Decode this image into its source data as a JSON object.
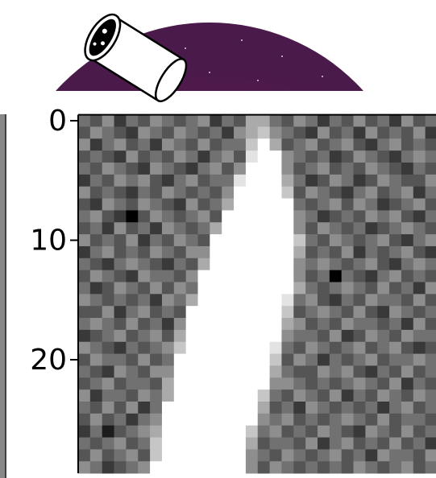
{
  "chart_data": {
    "type": "heatmap",
    "colormap": "gray",
    "ylim": [
      -0.5,
      29.5
    ],
    "yticks": [
      0,
      10,
      20
    ],
    "values": [
      [
        4,
        3,
        5,
        2,
        4,
        3,
        5,
        4,
        3,
        4,
        5,
        2,
        4,
        3,
        6,
        6,
        4,
        3,
        5,
        4,
        2,
        4,
        3,
        5,
        3,
        4,
        2,
        5,
        3,
        4
      ],
      [
        3,
        5,
        4,
        3,
        2,
        5,
        4,
        3,
        5,
        4,
        3,
        4,
        2,
        5,
        6,
        7,
        5,
        4,
        3,
        2,
        5,
        3,
        4,
        2,
        5,
        3,
        4,
        3,
        5,
        2
      ],
      [
        5,
        2,
        4,
        5,
        3,
        4,
        2,
        5,
        4,
        3,
        5,
        3,
        4,
        4,
        7,
        9,
        6,
        3,
        4,
        5,
        3,
        4,
        5,
        3,
        2,
        4,
        5,
        3,
        4,
        3
      ],
      [
        3,
        4,
        3,
        2,
        5,
        3,
        4,
        3,
        5,
        4,
        2,
        4,
        5,
        3,
        8,
        9,
        9,
        5,
        4,
        3,
        4,
        2,
        3,
        5,
        4,
        3,
        2,
        4,
        5,
        4
      ],
      [
        4,
        3,
        5,
        4,
        3,
        2,
        5,
        4,
        3,
        2,
        4,
        5,
        3,
        5,
        9,
        9,
        9,
        5,
        3,
        4,
        5,
        3,
        4,
        3,
        5,
        4,
        3,
        2,
        4,
        3
      ],
      [
        2,
        4,
        3,
        5,
        4,
        5,
        3,
        2,
        4,
        5,
        3,
        4,
        4,
        8,
        9,
        9,
        9,
        6,
        4,
        2,
        3,
        5,
        4,
        2,
        3,
        5,
        4,
        3,
        3,
        5
      ],
      [
        5,
        3,
        4,
        3,
        2,
        4,
        3,
        5,
        4,
        3,
        4,
        3,
        5,
        9,
        9,
        9,
        9,
        7,
        3,
        5,
        4,
        3,
        2,
        4,
        5,
        3,
        4,
        5,
        2,
        4
      ],
      [
        3,
        2,
        5,
        4,
        3,
        5,
        4,
        3,
        2,
        5,
        3,
        4,
        6,
        9,
        9,
        9,
        9,
        9,
        4,
        3,
        4,
        5,
        3,
        5,
        4,
        2,
        3,
        4,
        5,
        3
      ],
      [
        4,
        5,
        3,
        2,
        0,
        3,
        5,
        4,
        3,
        4,
        5,
        3,
        9,
        9,
        9,
        9,
        9,
        9,
        5,
        4,
        2,
        3,
        4,
        3,
        5,
        4,
        5,
        3,
        2,
        4
      ],
      [
        3,
        4,
        2,
        5,
        3,
        4,
        2,
        5,
        4,
        3,
        4,
        6,
        9,
        9,
        9,
        9,
        9,
        9,
        5,
        3,
        5,
        4,
        3,
        4,
        2,
        3,
        4,
        5,
        4,
        3
      ],
      [
        5,
        3,
        4,
        3,
        5,
        2,
        4,
        3,
        5,
        4,
        3,
        9,
        9,
        9,
        9,
        9,
        9,
        9,
        7,
        4,
        3,
        5,
        4,
        3,
        4,
        5,
        3,
        2,
        4,
        5
      ],
      [
        2,
        4,
        5,
        3,
        4,
        3,
        5,
        4,
        3,
        5,
        5,
        9,
        9,
        9,
        9,
        9,
        9,
        9,
        6,
        3,
        4,
        3,
        5,
        2,
        4,
        3,
        4,
        5,
        3,
        2
      ],
      [
        4,
        3,
        2,
        4,
        5,
        4,
        3,
        2,
        4,
        3,
        6,
        9,
        9,
        9,
        9,
        9,
        9,
        9,
        5,
        4,
        5,
        4,
        3,
        4,
        5,
        3,
        2,
        4,
        5,
        4
      ],
      [
        3,
        5,
        4,
        3,
        2,
        5,
        4,
        4,
        3,
        5,
        9,
        9,
        9,
        9,
        9,
        9,
        9,
        9,
        5,
        3,
        4,
        0,
        4,
        3,
        2,
        4,
        5,
        3,
        4,
        3
      ],
      [
        4,
        2,
        3,
        5,
        4,
        3,
        5,
        3,
        5,
        4,
        9,
        9,
        9,
        9,
        9,
        9,
        9,
        9,
        6,
        4,
        3,
        4,
        5,
        4,
        3,
        5,
        3,
        4,
        2,
        5
      ],
      [
        5,
        4,
        3,
        4,
        3,
        4,
        2,
        5,
        4,
        6,
        9,
        9,
        9,
        9,
        9,
        9,
        9,
        8,
        4,
        5,
        3,
        2,
        4,
        3,
        5,
        4,
        4,
        3,
        5,
        3
      ],
      [
        3,
        3,
        5,
        2,
        4,
        5,
        3,
        4,
        3,
        9,
        9,
        9,
        9,
        9,
        9,
        9,
        9,
        7,
        3,
        4,
        5,
        4,
        3,
        5,
        3,
        2,
        5,
        4,
        3,
        4
      ],
      [
        4,
        5,
        4,
        3,
        5,
        3,
        4,
        2,
        5,
        9,
        9,
        9,
        9,
        9,
        9,
        9,
        9,
        6,
        5,
        3,
        4,
        3,
        5,
        4,
        4,
        3,
        4,
        2,
        5,
        3
      ],
      [
        2,
        3,
        4,
        5,
        3,
        4,
        5,
        3,
        6,
        9,
        9,
        9,
        9,
        9,
        9,
        9,
        9,
        5,
        4,
        4,
        3,
        5,
        2,
        3,
        5,
        4,
        3,
        5,
        4,
        4
      ],
      [
        5,
        4,
        3,
        2,
        4,
        3,
        4,
        5,
        7,
        9,
        9,
        9,
        9,
        9,
        9,
        9,
        8,
        4,
        3,
        5,
        4,
        3,
        4,
        5,
        3,
        4,
        5,
        3,
        2,
        3
      ],
      [
        3,
        5,
        4,
        4,
        3,
        5,
        3,
        4,
        9,
        9,
        9,
        9,
        9,
        9,
        9,
        9,
        7,
        3,
        5,
        4,
        2,
        4,
        3,
        4,
        5,
        3,
        4,
        4,
        5,
        4
      ],
      [
        4,
        3,
        2,
        5,
        4,
        3,
        5,
        5,
        9,
        9,
        9,
        9,
        9,
        9,
        9,
        9,
        6,
        4,
        3,
        3,
        5,
        4,
        5,
        3,
        2,
        4,
        3,
        5,
        3,
        4
      ],
      [
        3,
        4,
        5,
        3,
        4,
        4,
        3,
        6,
        9,
        9,
        9,
        9,
        9,
        9,
        9,
        9,
        5,
        5,
        4,
        3,
        4,
        3,
        4,
        5,
        4,
        3,
        5,
        2,
        4,
        3
      ],
      [
        5,
        2,
        4,
        4,
        3,
        5,
        4,
        6,
        9,
        9,
        9,
        9,
        9,
        9,
        9,
        7,
        4,
        3,
        5,
        4,
        3,
        5,
        2,
        4,
        3,
        5,
        4,
        3,
        5,
        4
      ],
      [
        4,
        3,
        5,
        3,
        5,
        2,
        4,
        9,
        9,
        9,
        9,
        9,
        9,
        9,
        9,
        6,
        3,
        4,
        2,
        5,
        4,
        3,
        4,
        3,
        4,
        2,
        4,
        5,
        3,
        4
      ],
      [
        3,
        5,
        3,
        4,
        2,
        4,
        5,
        9,
        9,
        9,
        9,
        9,
        9,
        9,
        9,
        5,
        4,
        5,
        3,
        4,
        3,
        4,
        5,
        4,
        3,
        5,
        3,
        4,
        4,
        3
      ],
      [
        2,
        4,
        1,
        3,
        4,
        5,
        6,
        9,
        9,
        9,
        9,
        9,
        9,
        9,
        7,
        4,
        5,
        3,
        4,
        3,
        5,
        4,
        3,
        2,
        5,
        4,
        3,
        5,
        3,
        4
      ],
      [
        4,
        3,
        4,
        5,
        3,
        4,
        7,
        9,
        9,
        9,
        9,
        9,
        9,
        9,
        6,
        3,
        4,
        4,
        3,
        5,
        2,
        4,
        5,
        3,
        4,
        3,
        5,
        3,
        4,
        2
      ],
      [
        3,
        5,
        3,
        4,
        5,
        3,
        7,
        9,
        9,
        9,
        9,
        9,
        9,
        9,
        5,
        4,
        3,
        5,
        4,
        3,
        4,
        5,
        3,
        4,
        2,
        5,
        4,
        4,
        3,
        5
      ],
      [
        5,
        4,
        2,
        3,
        4,
        5,
        9,
        9,
        9,
        9,
        9,
        9,
        9,
        9,
        5,
        3,
        5,
        4,
        3,
        4,
        3,
        4,
        3,
        5,
        4,
        3,
        4,
        5,
        3,
        4
      ]
    ]
  }
}
